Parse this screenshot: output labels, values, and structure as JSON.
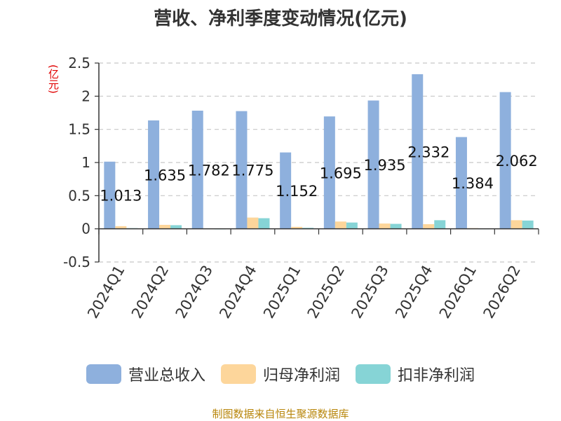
{
  "title": "营收、净利季度变动情况(亿元)",
  "unit_label": "(亿元)",
  "source": "制图数据来自恒生聚源数据库",
  "chart_data": {
    "type": "bar",
    "categories": [
      "2024Q1",
      "2024Q2",
      "2024Q3",
      "2024Q4",
      "2025Q1",
      "2025Q2",
      "2025Q3",
      "2025Q4",
      "2026Q1",
      "2026Q2"
    ],
    "ylim": [
      -0.5,
      2.5
    ],
    "yticks": [
      "-0.5",
      "0",
      "0.5",
      "1",
      "1.5",
      "2",
      "2.5"
    ],
    "grid": true,
    "legend_position": "bottom",
    "series": [
      {
        "name": "营业总收入",
        "color": "#8eb0dd",
        "values": [
          1.013,
          1.635,
          1.782,
          1.775,
          1.152,
          1.695,
          1.935,
          2.332,
          1.384,
          2.062
        ],
        "labels": [
          "1.013",
          "1.635",
          "1.782",
          "1.775",
          "1.152",
          "1.695",
          "1.935",
          "2.332",
          "1.384",
          "2.062"
        ]
      },
      {
        "name": "归母净利润",
        "color": "#fdd69b",
        "values": [
          0.04,
          0.06,
          0.005,
          0.17,
          0.03,
          0.11,
          0.08,
          0.07,
          0.01,
          0.13
        ]
      },
      {
        "name": "扣非净利润",
        "color": "#86d4d6",
        "values": [
          0.01,
          0.055,
          0.002,
          0.16,
          0.015,
          0.095,
          0.075,
          0.13,
          0.005,
          0.125
        ]
      }
    ]
  }
}
